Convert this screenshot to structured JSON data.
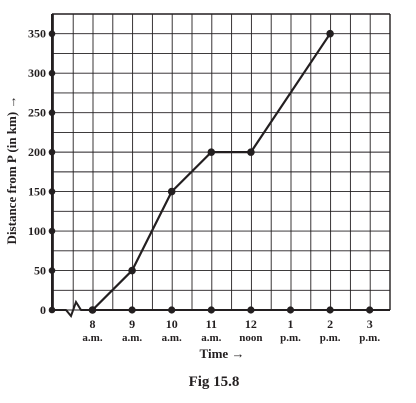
{
  "chart_data": {
    "type": "line",
    "title": "",
    "caption": "Fig 15.8",
    "xlabel": "Time →",
    "ylabel": "Distance from P (in km) →",
    "x": [
      "8 a.m.",
      "9 a.m.",
      "10 a.m.",
      "11 a.m.",
      "12 noon",
      "1 p.m.",
      "2 p.m.",
      "3 p.m."
    ],
    "x_ticks": [
      {
        "hour": "8",
        "period": "a.m."
      },
      {
        "hour": "9",
        "period": "a.m."
      },
      {
        "hour": "10",
        "period": "a.m."
      },
      {
        "hour": "11",
        "period": "a.m."
      },
      {
        "hour": "12",
        "period": "noon"
      },
      {
        "hour": "1",
        "period": "p.m."
      },
      {
        "hour": "2",
        "period": "p.m."
      },
      {
        "hour": "3",
        "period": "p.m."
      }
    ],
    "series": [
      {
        "values": [
          0,
          50,
          150,
          200,
          200,
          null,
          350,
          null
        ]
      }
    ],
    "y_ticks": [
      0,
      50,
      100,
      150,
      200,
      250,
      300,
      350
    ],
    "ylim": [
      0,
      350
    ],
    "grid": true,
    "axis_break": "zigzag on x-axis before 8 a.m.",
    "colors": {
      "ink": "#231f20",
      "background": "#ffffff"
    }
  }
}
